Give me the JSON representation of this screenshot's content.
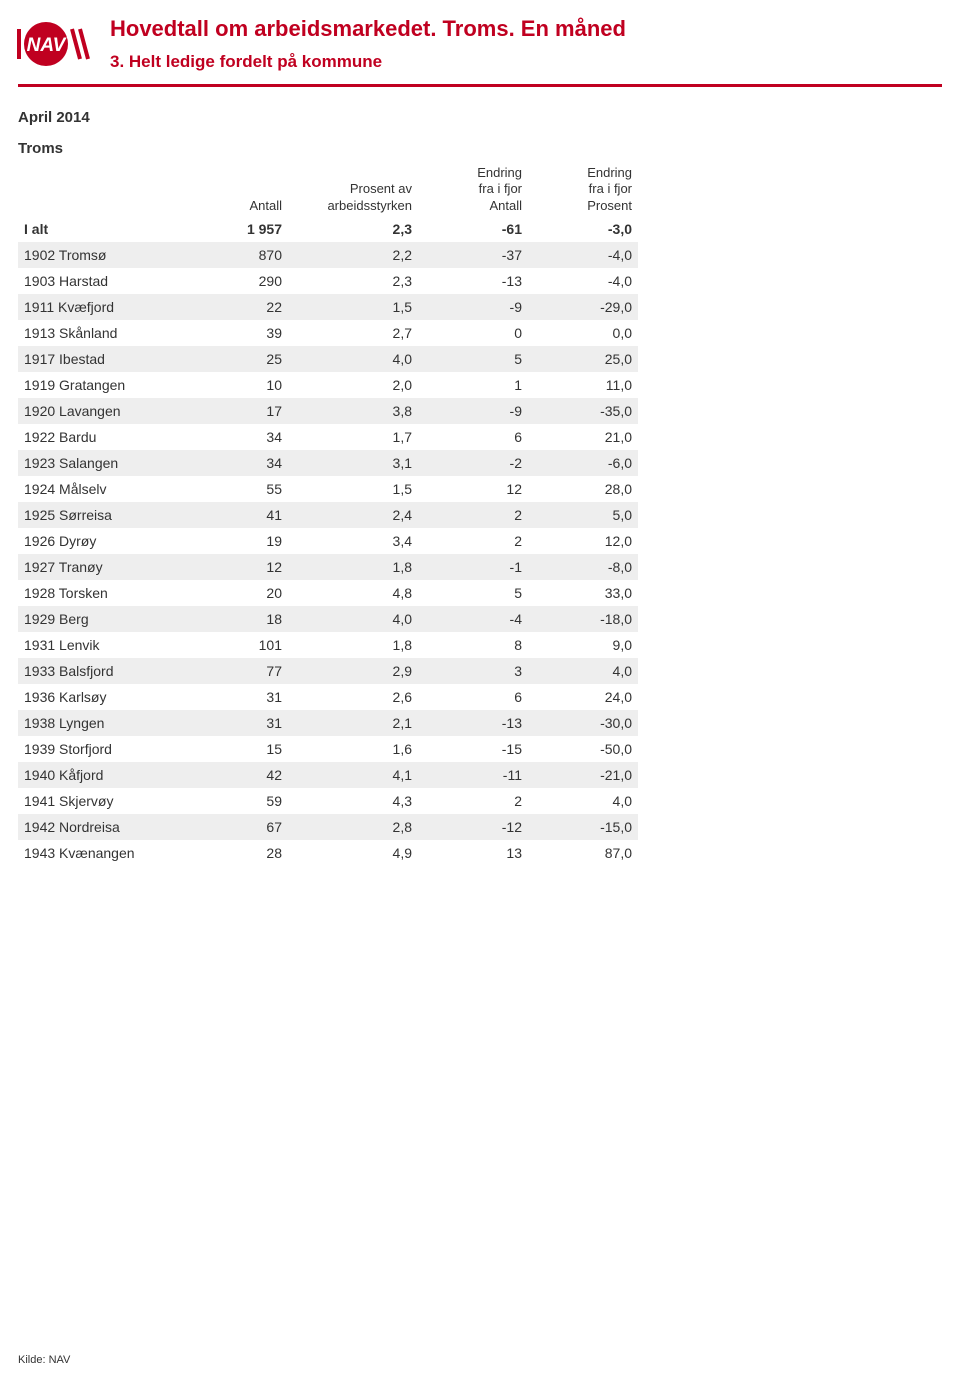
{
  "header": {
    "title": "Hovedtall om arbeidsmarkedet. Troms. En måned",
    "subtitle": "3. Helt ledige fordelt på kommune"
  },
  "month": "April 2014",
  "region": "Troms",
  "columns": {
    "c1": "",
    "c2": "Antall",
    "c3_line1": "Prosent av",
    "c3_line2": "arbeidsstyrken",
    "c4_line1": "Endring",
    "c4_line2": "fra i fjor",
    "c4_line3": "Antall",
    "c5_line1": "Endring",
    "c5_line2": "fra i fjor",
    "c5_line3": "Prosent"
  },
  "total": {
    "label": "I alt",
    "antall": "1 957",
    "prosent": "2,3",
    "endr_a": "-61",
    "endr_p": "-3,0"
  },
  "rows": [
    {
      "label": "1902 Tromsø",
      "antall": "870",
      "prosent": "2,2",
      "endr_a": "-37",
      "endr_p": "-4,0"
    },
    {
      "label": "1903 Harstad",
      "antall": "290",
      "prosent": "2,3",
      "endr_a": "-13",
      "endr_p": "-4,0"
    },
    {
      "label": "1911 Kvæfjord",
      "antall": "22",
      "prosent": "1,5",
      "endr_a": "-9",
      "endr_p": "-29,0"
    },
    {
      "label": "1913 Skånland",
      "antall": "39",
      "prosent": "2,7",
      "endr_a": "0",
      "endr_p": "0,0"
    },
    {
      "label": "1917 Ibestad",
      "antall": "25",
      "prosent": "4,0",
      "endr_a": "5",
      "endr_p": "25,0"
    },
    {
      "label": "1919 Gratangen",
      "antall": "10",
      "prosent": "2,0",
      "endr_a": "1",
      "endr_p": "11,0"
    },
    {
      "label": "1920 Lavangen",
      "antall": "17",
      "prosent": "3,8",
      "endr_a": "-9",
      "endr_p": "-35,0"
    },
    {
      "label": "1922 Bardu",
      "antall": "34",
      "prosent": "1,7",
      "endr_a": "6",
      "endr_p": "21,0"
    },
    {
      "label": "1923 Salangen",
      "antall": "34",
      "prosent": "3,1",
      "endr_a": "-2",
      "endr_p": "-6,0"
    },
    {
      "label": "1924 Målselv",
      "antall": "55",
      "prosent": "1,5",
      "endr_a": "12",
      "endr_p": "28,0"
    },
    {
      "label": "1925 Sørreisa",
      "antall": "41",
      "prosent": "2,4",
      "endr_a": "2",
      "endr_p": "5,0"
    },
    {
      "label": "1926 Dyrøy",
      "antall": "19",
      "prosent": "3,4",
      "endr_a": "2",
      "endr_p": "12,0"
    },
    {
      "label": "1927 Tranøy",
      "antall": "12",
      "prosent": "1,8",
      "endr_a": "-1",
      "endr_p": "-8,0"
    },
    {
      "label": "1928 Torsken",
      "antall": "20",
      "prosent": "4,8",
      "endr_a": "5",
      "endr_p": "33,0"
    },
    {
      "label": "1929 Berg",
      "antall": "18",
      "prosent": "4,0",
      "endr_a": "-4",
      "endr_p": "-18,0"
    },
    {
      "label": "1931 Lenvik",
      "antall": "101",
      "prosent": "1,8",
      "endr_a": "8",
      "endr_p": "9,0"
    },
    {
      "label": "1933 Balsfjord",
      "antall": "77",
      "prosent": "2,9",
      "endr_a": "3",
      "endr_p": "4,0"
    },
    {
      "label": "1936 Karlsøy",
      "antall": "31",
      "prosent": "2,6",
      "endr_a": "6",
      "endr_p": "24,0"
    },
    {
      "label": "1938 Lyngen",
      "antall": "31",
      "prosent": "2,1",
      "endr_a": "-13",
      "endr_p": "-30,0"
    },
    {
      "label": "1939 Storfjord",
      "antall": "15",
      "prosent": "1,6",
      "endr_a": "-15",
      "endr_p": "-50,0"
    },
    {
      "label": "1940 Kåfjord",
      "antall": "42",
      "prosent": "4,1",
      "endr_a": "-11",
      "endr_p": "-21,0"
    },
    {
      "label": "1941 Skjervøy",
      "antall": "59",
      "prosent": "4,3",
      "endr_a": "2",
      "endr_p": "4,0"
    },
    {
      "label": "1942 Nordreisa",
      "antall": "67",
      "prosent": "2,8",
      "endr_a": "-12",
      "endr_p": "-15,0"
    },
    {
      "label": "1943 Kvænangen",
      "antall": "28",
      "prosent": "4,9",
      "endr_a": "13",
      "endr_p": "87,0"
    }
  ],
  "footer": "Kilde: NAV",
  "colors": {
    "accent": "#c00020",
    "stripe": "#eeeeee",
    "text": "#333333",
    "background": "#ffffff"
  }
}
